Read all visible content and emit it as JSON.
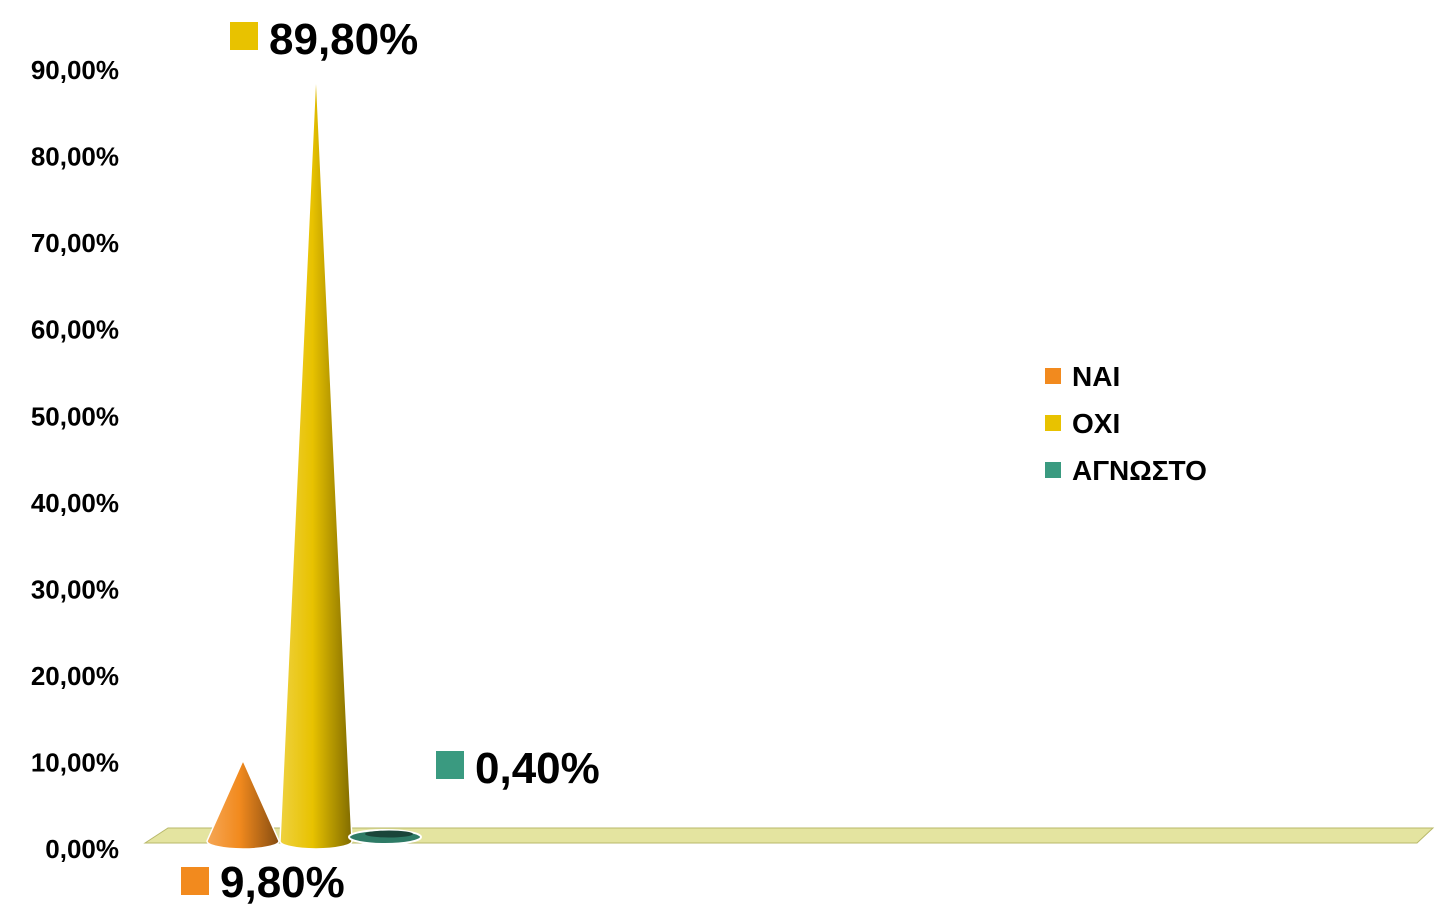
{
  "chart_data": {
    "type": "bar",
    "bar_shape": "cone-3d",
    "categories": [
      "ΝΑΙ",
      "ΟΧΙ",
      "ΑΓΝΩΣΤΟ"
    ],
    "values": [
      9.8,
      89.8,
      0.4
    ],
    "value_labels": [
      "9,80%",
      "89,80%",
      "0,40%"
    ],
    "colors": [
      "#F28A1E",
      "#E8C200",
      "#3A9A80"
    ],
    "ylim": [
      0,
      90
    ],
    "y_ticks": [
      "0,00%",
      "10,00%",
      "20,00%",
      "30,00%",
      "40,00%",
      "50,00%",
      "60,00%",
      "70,00%",
      "80,00%",
      "90,00%"
    ],
    "grid": false,
    "floor_color": "#E4E4A0",
    "legend": {
      "position": "right",
      "entries": [
        "ΝΑΙ",
        "ΟΧΙ",
        "ΑΓΝΩΣΤΟ"
      ]
    }
  }
}
